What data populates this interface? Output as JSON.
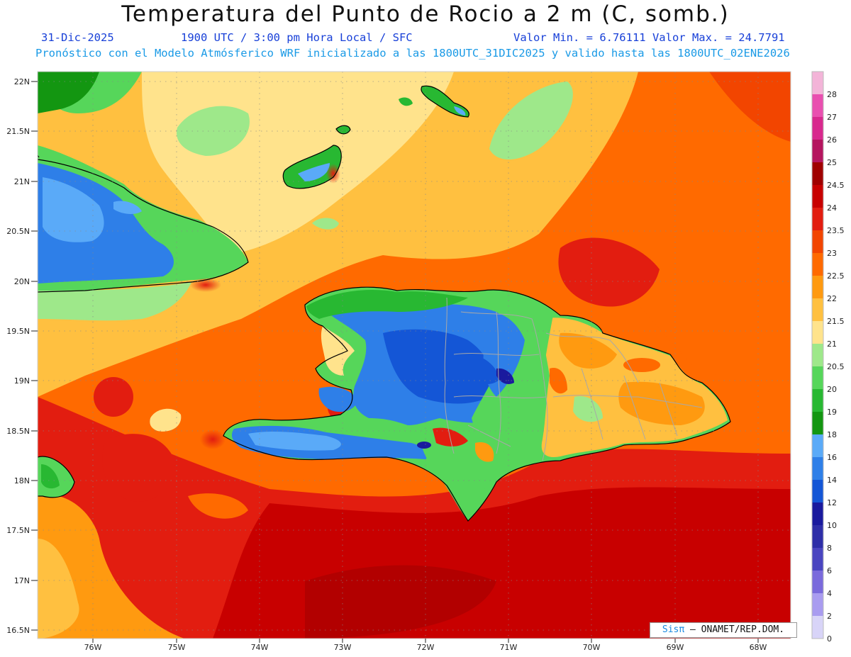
{
  "header": {
    "title": "Temperatura del Punto de Rocio a 2 m (C, somb.)",
    "date": "31-Dic-2025",
    "time": "1900 UTC / 3:00 pm Hora Local / SFC",
    "minmax": "Valor Min. = 6.76111  Valor Max. = 24.7791",
    "forecast": "Pronóstico con el Modelo Atmósferico WRF inicializado a las 1800UTC_31DIC2025 y valido hasta las  1800UTC_02ENE2026"
  },
  "axes": {
    "lat_labels": [
      "22N",
      "21.5N",
      "21N",
      "20.5N",
      "20N",
      "19.5N",
      "19N",
      "18.5N",
      "18N",
      "17.5N",
      "17N",
      "16.5N"
    ],
    "lon_labels": [
      "76W",
      "75W",
      "74W",
      "73W",
      "72W",
      "71W",
      "70W",
      "69W",
      "68W"
    ]
  },
  "colorbar": {
    "labels": [
      "28",
      "27",
      "26",
      "25",
      "24.5",
      "24",
      "23.5",
      "23",
      "22.5",
      "22",
      "21.5",
      "21",
      "20.5",
      "20",
      "19",
      "18",
      "16",
      "14",
      "12",
      "10",
      "8",
      "6",
      "4",
      "2",
      "0"
    ],
    "colors": [
      "#f3b4d8",
      "#e94fb0",
      "#d8288e",
      "#b5155f",
      "#a00000",
      "#c80000",
      "#e21d10",
      "#f24500",
      "#ff6a00",
      "#ff9a10",
      "#ffc040",
      "#ffe38c",
      "#9ee88a",
      "#56d65a",
      "#28b832",
      "#139611",
      "#5aaaf8",
      "#2e7fe8",
      "#1456d6",
      "#1a1a9e",
      "#2e2ea8",
      "#4a45c0",
      "#7a6adc",
      "#a99cf0",
      "#d8d4f8"
    ]
  },
  "credit": {
    "prefix": "Sisπ",
    "text": " – ONAMET/REP.DOM."
  }
}
